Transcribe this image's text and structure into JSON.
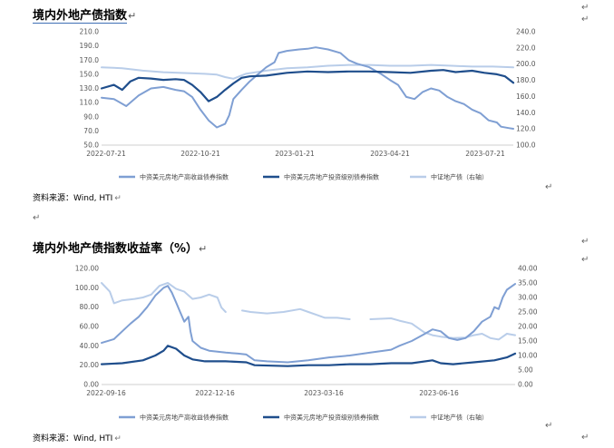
{
  "document": {
    "pilcrow_mark": "↵",
    "enter_mark": "↵"
  },
  "chart_data": [
    {
      "type": "line",
      "title": "境内外地产债指数",
      "x_ticks": [
        "2022-07-21",
        "2022-10-21",
        "2023-01-21",
        "2023-04-21",
        "2023-07-21"
      ],
      "ylim": [
        50,
        210
      ],
      "y_ticks": [
        "210.0",
        "190.0",
        "170.0",
        "150.0",
        "130.0",
        "110.0",
        "90.0",
        "70.0",
        "50.0"
      ],
      "y2lim": [
        100,
        240
      ],
      "y2_ticks": [
        "240.0",
        "220.0",
        "200.0",
        "180.0",
        "160.0",
        "140.0",
        "120.0",
        "100.0"
      ],
      "series": [
        {
          "name": "中资美元房地产高收益债券指数",
          "color": "#7f9fd3",
          "axis": "left",
          "values": [
            [
              0,
              117
            ],
            [
              0.03,
              115
            ],
            [
              0.06,
              105
            ],
            [
              0.09,
              120
            ],
            [
              0.12,
              130
            ],
            [
              0.15,
              132
            ],
            [
              0.18,
              128
            ],
            [
              0.2,
              126
            ],
            [
              0.22,
              118
            ],
            [
              0.24,
              100
            ],
            [
              0.26,
              85
            ],
            [
              0.28,
              75
            ],
            [
              0.3,
              80
            ],
            [
              0.31,
              92
            ],
            [
              0.32,
              115
            ],
            [
              0.34,
              128
            ],
            [
              0.36,
              140
            ],
            [
              0.38,
              150
            ],
            [
              0.4,
              160
            ],
            [
              0.42,
              167
            ],
            [
              0.43,
              180
            ],
            [
              0.45,
              183
            ],
            [
              0.48,
              185
            ],
            [
              0.5,
              186
            ],
            [
              0.52,
              188
            ],
            [
              0.55,
              185
            ],
            [
              0.58,
              180
            ],
            [
              0.6,
              170
            ],
            [
              0.62,
              165
            ],
            [
              0.65,
              160
            ],
            [
              0.68,
              150
            ],
            [
              0.7,
              142
            ],
            [
              0.72,
              135
            ],
            [
              0.74,
              118
            ],
            [
              0.76,
              115
            ],
            [
              0.78,
              125
            ],
            [
              0.8,
              130
            ],
            [
              0.82,
              127
            ],
            [
              0.84,
              118
            ],
            [
              0.86,
              112
            ],
            [
              0.88,
              108
            ],
            [
              0.9,
              100
            ],
            [
              0.92,
              95
            ],
            [
              0.94,
              85
            ],
            [
              0.96,
              82
            ],
            [
              0.97,
              76
            ],
            [
              0.99,
              74
            ],
            [
              1,
              73
            ]
          ]
        },
        {
          "name": "中资美元房地产投资级别债券指数",
          "color": "#1f4e8c",
          "axis": "left",
          "values": [
            [
              0,
              130
            ],
            [
              0.03,
              135
            ],
            [
              0.05,
              128
            ],
            [
              0.07,
              140
            ],
            [
              0.09,
              145
            ],
            [
              0.12,
              144
            ],
            [
              0.15,
              142
            ],
            [
              0.18,
              143
            ],
            [
              0.2,
              142
            ],
            [
              0.22,
              135
            ],
            [
              0.24,
              125
            ],
            [
              0.26,
              112
            ],
            [
              0.28,
              118
            ],
            [
              0.3,
              128
            ],
            [
              0.32,
              137
            ],
            [
              0.34,
              145
            ],
            [
              0.36,
              147
            ],
            [
              0.4,
              148
            ],
            [
              0.45,
              152
            ],
            [
              0.5,
              154
            ],
            [
              0.55,
              153
            ],
            [
              0.6,
              154
            ],
            [
              0.65,
              154
            ],
            [
              0.7,
              153
            ],
            [
              0.75,
              152
            ],
            [
              0.8,
              155
            ],
            [
              0.83,
              156
            ],
            [
              0.86,
              153
            ],
            [
              0.9,
              155
            ],
            [
              0.93,
              152
            ],
            [
              0.96,
              150
            ],
            [
              0.98,
              147
            ],
            [
              1,
              138
            ]
          ]
        },
        {
          "name": "中证地产债（右轴）",
          "color": "#b9cde9",
          "axis": "right",
          "values": [
            [
              0,
              196
            ],
            [
              0.05,
              195
            ],
            [
              0.1,
              192
            ],
            [
              0.15,
              190
            ],
            [
              0.2,
              189
            ],
            [
              0.25,
              188
            ],
            [
              0.28,
              187
            ],
            [
              0.3,
              184
            ],
            [
              0.32,
              182
            ],
            [
              0.35,
              188
            ],
            [
              0.4,
              192
            ],
            [
              0.45,
              195
            ],
            [
              0.5,
              196
            ],
            [
              0.55,
              198
            ],
            [
              0.6,
              199
            ],
            [
              0.65,
              199
            ],
            [
              0.7,
              198
            ],
            [
              0.75,
              198
            ],
            [
              0.8,
              199
            ],
            [
              0.85,
              198
            ],
            [
              0.9,
              197
            ],
            [
              0.95,
              197
            ],
            [
              1,
              196
            ]
          ]
        }
      ],
      "source": "资料来源：Wind, HTI"
    },
    {
      "type": "line",
      "title": "境内外地产债指数收益率（%）",
      "x_ticks": [
        "2022-09-16",
        "2022-12-16",
        "2023-03-16",
        "2023-06-16"
      ],
      "ylim": [
        0,
        120
      ],
      "y_ticks": [
        "120.00",
        "100.00",
        "80.00",
        "60.00",
        "40.00",
        "20.00",
        "0.00"
      ],
      "y2lim": [
        0,
        40
      ],
      "y2_ticks": [
        "40.00",
        "35.00",
        "30.00",
        "25.00",
        "20.00",
        "15.00",
        "10.00",
        "5.00",
        "0.00"
      ],
      "series": [
        {
          "name": "中资美元房地产高收益债券指数",
          "color": "#7f9fd3",
          "axis": "left",
          "values": [
            [
              0,
              43
            ],
            [
              0.03,
              47
            ],
            [
              0.05,
              55
            ],
            [
              0.07,
              63
            ],
            [
              0.09,
              70
            ],
            [
              0.11,
              80
            ],
            [
              0.13,
              92
            ],
            [
              0.15,
              100
            ],
            [
              0.16,
              102
            ],
            [
              0.17,
              95
            ],
            [
              0.18,
              85
            ],
            [
              0.19,
              75
            ],
            [
              0.2,
              65
            ],
            [
              0.21,
              70
            ],
            [
              0.215,
              55
            ],
            [
              0.22,
              45
            ],
            [
              0.24,
              38
            ],
            [
              0.26,
              35
            ],
            [
              0.28,
              34
            ],
            [
              0.3,
              33
            ],
            [
              0.33,
              32
            ],
            [
              0.35,
              31
            ],
            [
              0.37,
              25
            ],
            [
              0.4,
              24
            ],
            [
              0.45,
              23
            ],
            [
              0.5,
              25
            ],
            [
              0.55,
              28
            ],
            [
              0.6,
              30
            ],
            [
              0.65,
              33
            ],
            [
              0.7,
              36
            ],
            [
              0.72,
              40
            ],
            [
              0.75,
              45
            ],
            [
              0.78,
              52
            ],
            [
              0.8,
              57
            ],
            [
              0.82,
              55
            ],
            [
              0.84,
              48
            ],
            [
              0.86,
              46
            ],
            [
              0.88,
              48
            ],
            [
              0.9,
              55
            ],
            [
              0.92,
              65
            ],
            [
              0.94,
              70
            ],
            [
              0.95,
              80
            ],
            [
              0.96,
              78
            ],
            [
              0.97,
              90
            ],
            [
              0.98,
              98
            ],
            [
              1,
              104
            ]
          ]
        },
        {
          "name": "中资美元房地产投资级别债券指数",
          "color": "#1f4e8c",
          "axis": "left",
          "values": [
            [
              0,
              21
            ],
            [
              0.05,
              22
            ],
            [
              0.1,
              25
            ],
            [
              0.13,
              30
            ],
            [
              0.15,
              35
            ],
            [
              0.16,
              40
            ],
            [
              0.18,
              37
            ],
            [
              0.2,
              30
            ],
            [
              0.22,
              26
            ],
            [
              0.25,
              24
            ],
            [
              0.3,
              24
            ],
            [
              0.35,
              23
            ],
            [
              0.37,
              20
            ],
            [
              0.45,
              19
            ],
            [
              0.5,
              20
            ],
            [
              0.55,
              20
            ],
            [
              0.6,
              21
            ],
            [
              0.65,
              21
            ],
            [
              0.7,
              22
            ],
            [
              0.75,
              22
            ],
            [
              0.8,
              25
            ],
            [
              0.82,
              22
            ],
            [
              0.85,
              21
            ],
            [
              0.9,
              23
            ],
            [
              0.95,
              25
            ],
            [
              0.98,
              28
            ],
            [
              1,
              32
            ]
          ]
        },
        {
          "name": "中证地产债（右轴）",
          "color": "#b9cde9",
          "axis": "right",
          "values": [
            [
              0,
              35
            ],
            [
              0.02,
              32
            ],
            [
              0.03,
              28
            ],
            [
              0.05,
              29
            ],
            [
              0.08,
              29.5
            ],
            [
              0.1,
              30
            ],
            [
              0.12,
              31
            ],
            [
              0.14,
              34
            ],
            [
              0.16,
              35
            ],
            [
              0.18,
              33
            ],
            [
              0.2,
              32
            ],
            [
              0.22,
              29.5
            ],
            [
              0.24,
              30
            ],
            [
              0.26,
              31
            ],
            [
              0.28,
              30
            ],
            [
              0.29,
              26.5
            ],
            [
              0.3,
              25
            ],
            [
              0.31,
              null
            ],
            [
              0.34,
              25.5
            ],
            [
              0.36,
              25
            ],
            [
              0.4,
              24.5
            ],
            [
              0.44,
              25
            ],
            [
              0.48,
              26
            ],
            [
              0.5,
              25
            ],
            [
              0.52,
              24
            ],
            [
              0.54,
              23
            ],
            [
              0.57,
              23
            ],
            [
              0.6,
              22.5
            ],
            [
              0.62,
              null
            ],
            [
              0.65,
              22.5
            ],
            [
              0.7,
              22.8
            ],
            [
              0.72,
              22
            ],
            [
              0.75,
              21
            ],
            [
              0.78,
              18
            ],
            [
              0.8,
              17
            ],
            [
              0.82,
              16.5
            ],
            [
              0.85,
              16
            ],
            [
              0.88,
              16.2
            ],
            [
              0.9,
              17
            ],
            [
              0.92,
              17.5
            ],
            [
              0.94,
              16
            ],
            [
              0.96,
              15.5
            ],
            [
              0.98,
              17.5
            ],
            [
              1,
              17
            ]
          ]
        }
      ],
      "source": "资料来源：Wind, HTI"
    }
  ]
}
